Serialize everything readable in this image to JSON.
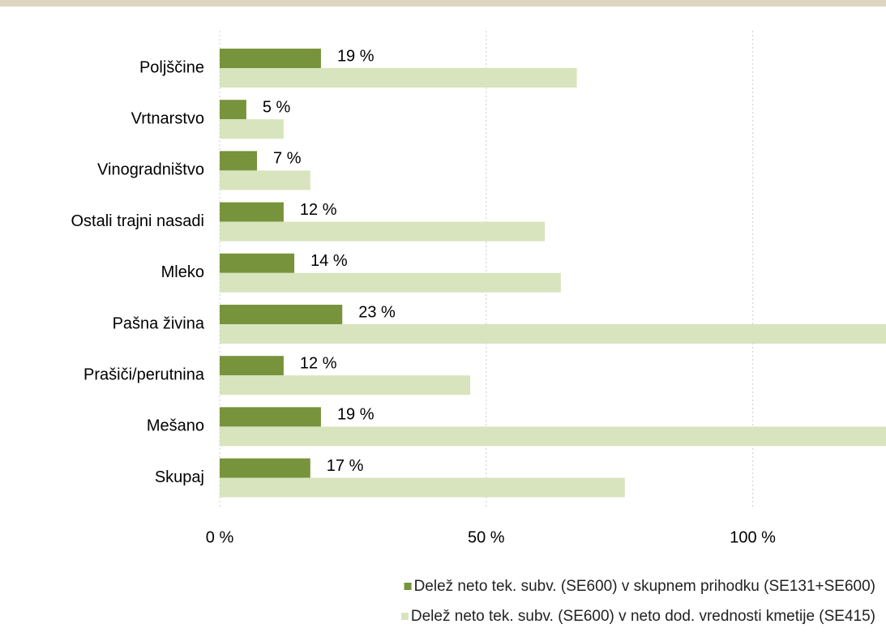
{
  "chart_data": {
    "type": "hbar",
    "categories": [
      "Poljščine",
      "Vrtnarstvo",
      "Vinogradništvo",
      "Ostali trajni nasadi",
      "Mleko",
      "Pašna živina",
      "Prašiči/perutnina",
      "Mešano",
      "Skupaj"
    ],
    "series": [
      {
        "name": "Delež neto tek. subv. (SE600) v skupnem prihodku (SE131+SE600)",
        "color": "#77933c",
        "values": [
          19,
          5,
          7,
          12,
          14,
          23,
          12,
          19,
          17
        ],
        "value_labels": [
          "19 %",
          "5 %",
          "7 %",
          "12 %",
          "14 %",
          "23 %",
          "12 %",
          "19 %",
          "17 %"
        ]
      },
      {
        "name": "Delež neto tek. subv. (SE600) v neto dod. vrednosti kmetije (SE415)",
        "color": "#d7e4bd",
        "values": [
          67,
          12,
          17,
          61,
          64,
          135,
          47,
          140,
          76
        ]
      }
    ],
    "xlim": [
      0,
      125
    ],
    "xticks": [
      {
        "value": 0,
        "label": "0 %"
      },
      {
        "value": 50,
        "label": "50 %"
      },
      {
        "value": 100,
        "label": "100 %"
      }
    ],
    "grid": true
  }
}
